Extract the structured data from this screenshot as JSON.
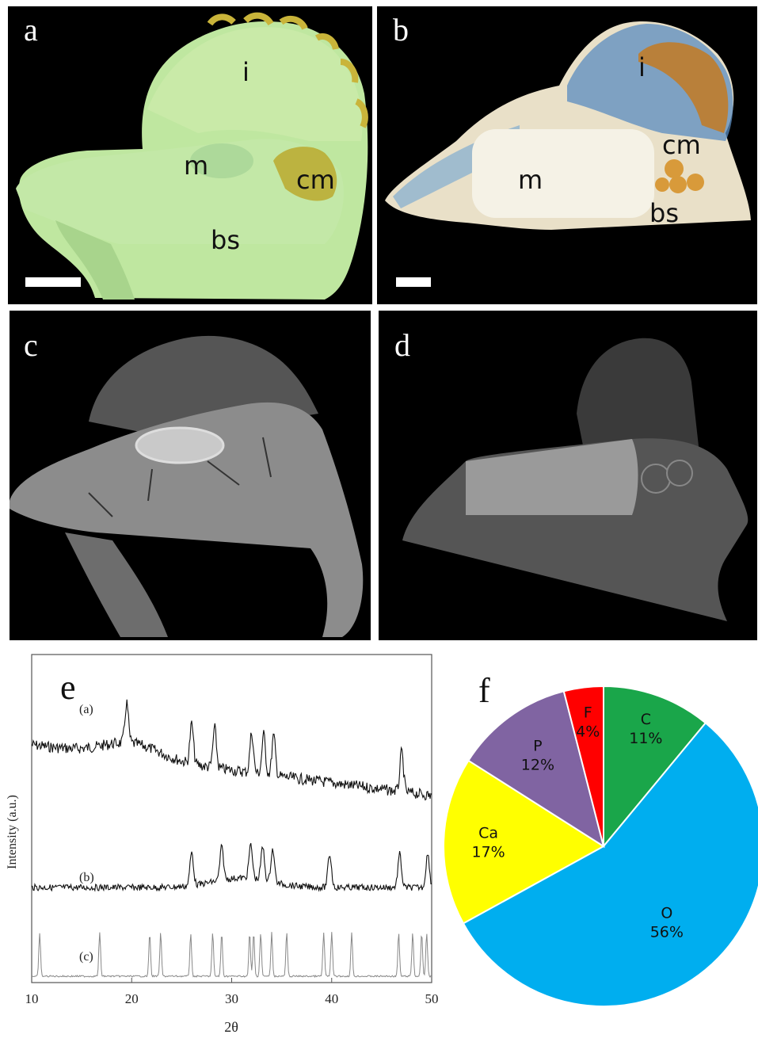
{
  "panels": {
    "a": {
      "letter": "a",
      "labels": {
        "i": "i",
        "m": "m",
        "cm": "cm",
        "bs": "bs"
      }
    },
    "b": {
      "letter": "b",
      "labels": {
        "i": "i",
        "m": "m",
        "cm": "cm",
        "bs": "bs"
      }
    },
    "c": {
      "letter": "c"
    },
    "d": {
      "letter": "d"
    }
  },
  "chart_data": [
    {
      "type": "line",
      "panel_letter": "e",
      "xlabel": "2θ",
      "ylabel": "Intensity (a.u.)",
      "xlim": [
        10,
        50
      ],
      "x_ticks": [
        "10",
        "20",
        "30",
        "40",
        "50"
      ],
      "series": [
        {
          "name": "(a)",
          "color": "#111111",
          "peaks": [
            19.5,
            26,
            28.3,
            32,
            33.2,
            34.2,
            47
          ]
        },
        {
          "name": "(b)",
          "color": "#111111",
          "peaks": [
            26,
            29,
            31.9,
            33.1,
            34.1,
            39.8,
            46.8,
            49.6
          ]
        },
        {
          "name": "(c)",
          "color": "#888888",
          "peaks": [
            10.8,
            16.8,
            21.8,
            22.9,
            25.9,
            28.1,
            29,
            31.8,
            32.2,
            32.9,
            34,
            35.5,
            39.2,
            40,
            42,
            46.7,
            48.1,
            49,
            49.5
          ]
        }
      ]
    },
    {
      "type": "pie",
      "panel_letter": "f",
      "slices": [
        {
          "label": "C",
          "value": 11,
          "pct": "11%",
          "color": "#1aa64a"
        },
        {
          "label": "O",
          "value": 56,
          "pct": "56%",
          "color": "#00aeef"
        },
        {
          "label": "Ca",
          "value": 17,
          "pct": "17%",
          "color": "#ffff00"
        },
        {
          "label": "P",
          "value": 12,
          "pct": "12%",
          "color": "#8064a2"
        },
        {
          "label": "F",
          "value": 4,
          "pct": "4%",
          "color": "#ff0000"
        }
      ]
    }
  ]
}
